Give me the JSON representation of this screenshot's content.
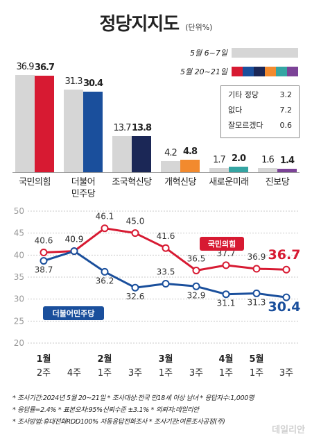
{
  "title": "정당지지도",
  "unit": "(단위%)",
  "legend": {
    "prev_label": "5월 6~7일",
    "curr_label": "5월 20~21일"
  },
  "colors": {
    "prev_bar": "#d6d6d6",
    "ppp": "#d71a32",
    "democratic": "#1a4f9c",
    "rebuild": "#1b2756",
    "reform": "#f28a2e",
    "new_future": "#35a5a3",
    "progressive": "#7c4397"
  },
  "other_box": [
    {
      "name": "기타 정당",
      "value": "3.2"
    },
    {
      "name": "없다",
      "value": "7.2"
    },
    {
      "name": "잘모르겠다",
      "value": "0.6"
    }
  ],
  "chart_data": [
    {
      "type": "bar",
      "categories": [
        "국민의힘",
        "더불어\n민주당",
        "조국혁신당",
        "개혁신당",
        "새로운미래",
        "진보당"
      ],
      "category_lines": [
        [
          "국민의힘"
        ],
        [
          "더불어",
          "민주당"
        ],
        [
          "조국혁신당"
        ],
        [
          "개혁신당"
        ],
        [
          "새로운미래"
        ],
        [
          "진보당"
        ]
      ],
      "series": [
        {
          "name": "5월 6~7일",
          "values": [
            36.9,
            31.3,
            13.7,
            4.2,
            1.7,
            1.6
          ],
          "labels": [
            "36.9",
            "31.3",
            "13.7",
            "4.2",
            "1.7",
            "1.6"
          ]
        },
        {
          "name": "5월 20~21일",
          "values": [
            36.7,
            30.4,
            13.8,
            4.8,
            2.0,
            1.4
          ],
          "labels": [
            "36.7",
            "30.4",
            "13.8",
            "4.8",
            "2.0",
            "1.4"
          ]
        }
      ]
    },
    {
      "type": "line",
      "x": [
        "1월 2주",
        "4주",
        "2월 1주",
        "3주",
        "3월 1주",
        "3주",
        "4월 1주",
        "5월 1주",
        "3주"
      ],
      "x_ticks": [
        {
          "top": "1월",
          "bottom": "2주"
        },
        {
          "top": "",
          "bottom": "4주"
        },
        {
          "top": "2월",
          "bottom": "1주"
        },
        {
          "top": "",
          "bottom": "3주"
        },
        {
          "top": "3월",
          "bottom": "1주"
        },
        {
          "top": "",
          "bottom": "3주"
        },
        {
          "top": "4월",
          "bottom": "1주"
        },
        {
          "top": "5월",
          "bottom": "1주"
        },
        {
          "top": "",
          "bottom": "3주"
        }
      ],
      "y_ticks": [
        "20",
        "25",
        "30",
        "35",
        "40",
        "45",
        "50"
      ],
      "ylim": [
        20,
        50
      ],
      "series": [
        {
          "name": "국민의힘",
          "values": [
            40.6,
            40.9,
            46.1,
            45.0,
            41.6,
            36.5,
            37.7,
            36.9,
            36.7
          ],
          "labels": [
            "40.6",
            "40.9",
            "46.1",
            "45.0",
            "41.6",
            "36.5",
            "37.7",
            "36.9",
            "36.7"
          ]
        },
        {
          "name": "더불어민주당",
          "values": [
            38.7,
            40.9,
            36.2,
            32.6,
            33.5,
            32.9,
            31.1,
            31.3,
            30.4
          ],
          "labels": [
            "38.7",
            "40.9",
            "36.2",
            "32.6",
            "33.5",
            "32.9",
            "31.1",
            "31.3",
            "30.4"
          ]
        }
      ],
      "grid": true
    }
  ],
  "footer": [
    [
      "조사기간:2024년 5월 20~21일",
      "조사대상:전국 만18세 이상 남녀",
      "응답자수:1,000명"
    ],
    [
      "응답률=2.4%",
      "표본오차:95%신뢰수준 ±3.1%",
      "의뢰자:데일리안"
    ],
    [
      "조사방법:휴대전화RDD100% 자동응답전화조사",
      "조사기관:여론조사공정(주)"
    ]
  ],
  "watermark": "데일리안"
}
